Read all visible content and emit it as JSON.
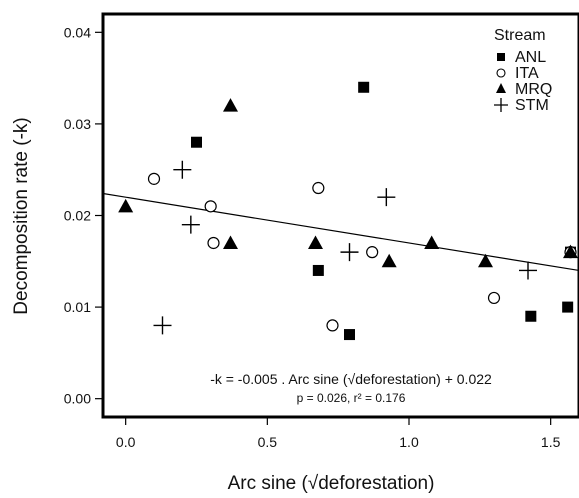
{
  "chart_data": {
    "type": "scatter",
    "xlabel": "Arc sine (√deforestation)",
    "ylabel": "Decomposition rate (-k)",
    "xlim": [
      -0.08,
      1.6
    ],
    "ylim": [
      -0.002,
      0.042
    ],
    "xticks": [
      0.0,
      0.5,
      1.0,
      1.5
    ],
    "xtick_labels": [
      "0.0",
      "0.5",
      "1.0",
      "1.5"
    ],
    "yticks": [
      0.0,
      0.01,
      0.02,
      0.03,
      0.04
    ],
    "ytick_labels": [
      "0.00",
      "0.01",
      "0.02",
      "0.03",
      "0.04"
    ],
    "grid": false,
    "legend": {
      "title": "Stream",
      "placement": "top-right"
    },
    "series": [
      {
        "name": "ANL",
        "marker": "square",
        "x": [
          0.25,
          0.68,
          0.79,
          0.84,
          1.43,
          1.56,
          1.57
        ],
        "y": [
          0.028,
          0.014,
          0.007,
          0.034,
          0.009,
          0.01,
          0.016
        ]
      },
      {
        "name": "ITA",
        "marker": "circle",
        "x": [
          0.1,
          0.3,
          0.31,
          0.68,
          0.73,
          0.87,
          1.3,
          1.57
        ],
        "y": [
          0.024,
          0.021,
          0.017,
          0.023,
          0.008,
          0.016,
          0.011,
          0.016
        ]
      },
      {
        "name": "MRQ",
        "marker": "triangle",
        "x": [
          0.0,
          0.37,
          0.37,
          0.67,
          0.93,
          1.08,
          1.27,
          1.57
        ],
        "y": [
          0.021,
          0.032,
          0.017,
          0.017,
          0.015,
          0.017,
          0.015,
          0.016
        ]
      },
      {
        "name": "STM",
        "marker": "plus",
        "x": [
          0.13,
          0.2,
          0.23,
          0.79,
          0.92,
          1.42
        ],
        "y": [
          0.008,
          0.025,
          0.019,
          0.016,
          0.022,
          0.014
        ]
      }
    ],
    "regression": {
      "slope": -0.005,
      "intercept": 0.022
    },
    "equation_text": "-k = -0.005 . Arc sine (√deforestation) + 0.022",
    "stats_text": "p = 0.026, r² = 0.176"
  }
}
